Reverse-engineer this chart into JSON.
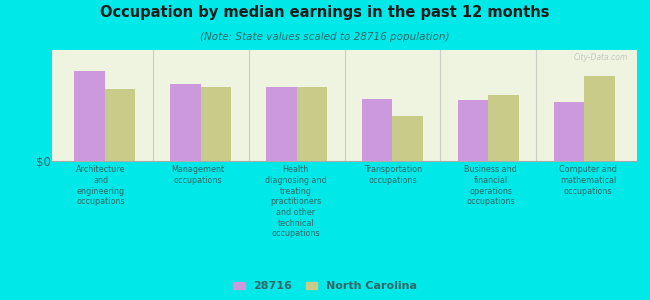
{
  "title": "Occupation by median earnings in the past 12 months",
  "subtitle": "(Note: State values scaled to 28716 population)",
  "background_color": "#00e8e8",
  "plot_bg": "#eef4e0",
  "categories": [
    "Architecture\nand\nengineering\noccupations",
    "Management\noccupations",
    "Health\ndiagnosing and\ntreating\npractitioners\nand other\ntechnical\noccupations",
    "Transportation\noccupations",
    "Business and\nfinancial\noperations\noccupations",
    "Computer and\nmathematical\noccupations"
  ],
  "values_28716": [
    0.85,
    0.72,
    0.7,
    0.58,
    0.57,
    0.55
  ],
  "values_nc": [
    0.68,
    0.7,
    0.7,
    0.42,
    0.62,
    0.8
  ],
  "color_28716": "#cc99dd",
  "color_nc": "#c8cc88",
  "legend_28716": "28716",
  "legend_nc": "North Carolina",
  "ylabel": "$0",
  "watermark": "City-Data.com",
  "title_color": "#1a1a1a",
  "subtitle_color": "#336666",
  "label_color": "#336666"
}
